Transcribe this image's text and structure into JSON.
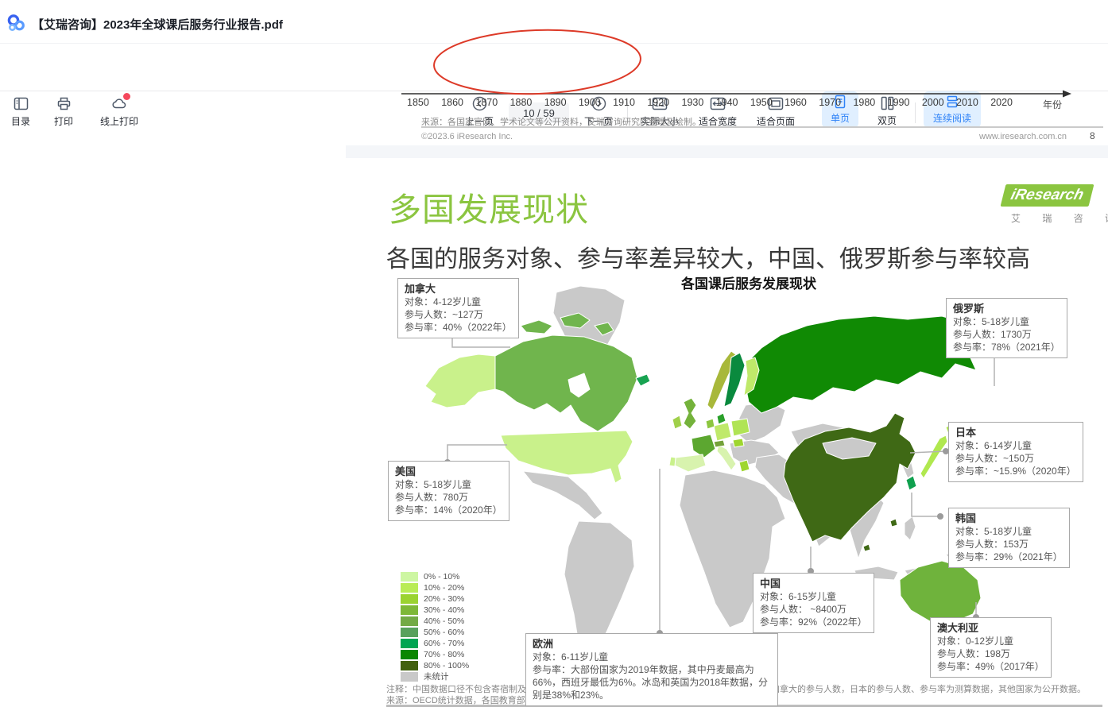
{
  "titlebar": {
    "title": "【艾瑞咨询】2023年全球课后服务行业报告.pdf"
  },
  "toolbar": {
    "toc": "目录",
    "print": "打印",
    "online_print": "线上打印",
    "prev": "上一页",
    "next": "下一页",
    "page_indicator": "10 / 59",
    "actual_size": "实际大小",
    "actual_size_glyph": "1:1",
    "fit_width": "适合宽度",
    "fit_page": "适合页面",
    "single_page": "单页",
    "double_page": "双页",
    "continuous": "连续阅读"
  },
  "colors": {
    "accent_blue": "#2e82f7",
    "chip_bg": "#e0efff",
    "badge_red": "#f5485d",
    "title_green": "#8bc540",
    "annotation_red": "#dd3a28"
  },
  "prev_page": {
    "years": [
      "1850",
      "1860",
      "1870",
      "1880",
      "1890",
      "1900",
      "1910",
      "1920",
      "1930",
      "1940",
      "1950",
      "1960",
      "1970",
      "1980",
      "1990",
      "2000",
      "2010",
      "2020"
    ],
    "axis_label": "年份",
    "source": "来源：各国家官网、学术论文等公开资料，艾瑞咨询研究院整理及绘制。",
    "copyright": "©2023.6 iResearch Inc.",
    "website": "www.iresearch.com.cn",
    "page_number": "8"
  },
  "page": {
    "title": "多国发展现状",
    "subtitle": "各国的服务对象、参与率差异较大，中国、俄罗斯参与率较高",
    "chart_title": "各国课后服务发展现状",
    "logo": {
      "i": "i",
      "brand": "Research",
      "sub": "艾 瑞 咨 询"
    },
    "note1": "注释：中国数据口径不包含寄宿制及村小学学生，其他国家数据口径为各年龄段的儿童人数。中国和加拿大的参与人数，日本的参与人数、参与率为测算数据，其他国家为公开数据。",
    "note2": "来源：OECD统计数据，各国教育部、统计局等官网数据，艾瑞咨询研究院整理绘制。"
  },
  "map": {
    "callouts": {
      "canada": {
        "name": "加拿大",
        "target": "对象：4-12岁儿童",
        "participants": "参与人数：~127万",
        "rate": "参与率：40%（2022年）"
      },
      "usa": {
        "name": "美国",
        "target": "对象：5-18岁儿童",
        "participants": "参与人数：780万",
        "rate": "参与率：14%（2020年）"
      },
      "russia": {
        "name": "俄罗斯",
        "target": "对象：5-18岁儿童",
        "participants": "参与人数：1730万",
        "rate": "参与率：78%（2021年）"
      },
      "japan": {
        "name": "日本",
        "target": "对象：6-14岁儿童",
        "participants": "参与人数：~150万",
        "rate": "参与率：~15.9%（2020年）"
      },
      "korea": {
        "name": "韩国",
        "target": "对象：5-18岁儿童",
        "participants": "参与人数：153万",
        "rate": "参与率：29%（2021年）"
      },
      "china": {
        "name": "中国",
        "target": "对象：6-15岁儿童",
        "participants": "参与人数： ~8400万",
        "rate": "参与率：92%（2022年）"
      },
      "europe": {
        "name": "欧洲",
        "target": "对象：6-11岁儿童",
        "rate": "参与率：大部份国家为2019年数据，其中丹麦最高为66%，西班牙最低为6%。冰岛和英国为2018年数据，分别是38%和23%。"
      },
      "australia": {
        "name": "澳大利亚",
        "target": "对象：0-12岁儿童",
        "participants": "参与人数：198万",
        "rate": "参与率：49%（2017年）"
      }
    },
    "legend": [
      {
        "label": "0% - 10%",
        "color": "#cdf6a2"
      },
      {
        "label": "10% - 20%",
        "color": "#b9ec55"
      },
      {
        "label": "20% - 30%",
        "color": "#9bd330"
      },
      {
        "label": "30% - 40%",
        "color": "#7eb837"
      },
      {
        "label": "40% - 50%",
        "color": "#73aa45"
      },
      {
        "label": "50% - 60%",
        "color": "#58a15c"
      },
      {
        "label": "60% - 70%",
        "color": "#00a551"
      },
      {
        "label": "70% - 80%",
        "color": "#0b8700"
      },
      {
        "label": "80% - 100%",
        "color": "#42610f"
      },
      {
        "label": "未统计",
        "color": "#c9c9c9"
      }
    ]
  },
  "chart_data": {
    "type": "map",
    "title": "各国课后服务发展现状",
    "countries": [
      {
        "name": "加拿大",
        "target": "4-12岁儿童",
        "participants": "~127万",
        "rate": "40%",
        "year": "2022年"
      },
      {
        "name": "美国",
        "target": "5-18岁儿童",
        "participants": "780万",
        "rate": "14%",
        "year": "2020年"
      },
      {
        "name": "俄罗斯",
        "target": "5-18岁儿童",
        "participants": "1730万",
        "rate": "78%",
        "year": "2021年"
      },
      {
        "name": "日本",
        "target": "6-14岁儿童",
        "participants": "~150万",
        "rate": "~15.9%",
        "year": "2020年"
      },
      {
        "name": "韩国",
        "target": "5-18岁儿童",
        "participants": "153万",
        "rate": "29%",
        "year": "2021年"
      },
      {
        "name": "中国",
        "target": "6-15岁儿童",
        "participants": "~8400万",
        "rate": "92%",
        "year": "2022年"
      },
      {
        "name": "欧洲",
        "target": "6-11岁儿童",
        "rate_note": "大部份国家为2019年数据，其中丹麦最高为66%，西班牙最低为6%。冰岛和英国为2018年数据，分别是38%和23%。"
      },
      {
        "name": "澳大利亚",
        "target": "0-12岁儿童",
        "participants": "198万",
        "rate": "49%",
        "year": "2017年"
      }
    ],
    "legend_bins": [
      "0% - 10%",
      "10% - 20%",
      "20% - 30%",
      "30% - 40%",
      "40% - 50%",
      "50% - 60%",
      "60% - 70%",
      "70% - 80%",
      "80% - 100%",
      "未统计"
    ]
  }
}
